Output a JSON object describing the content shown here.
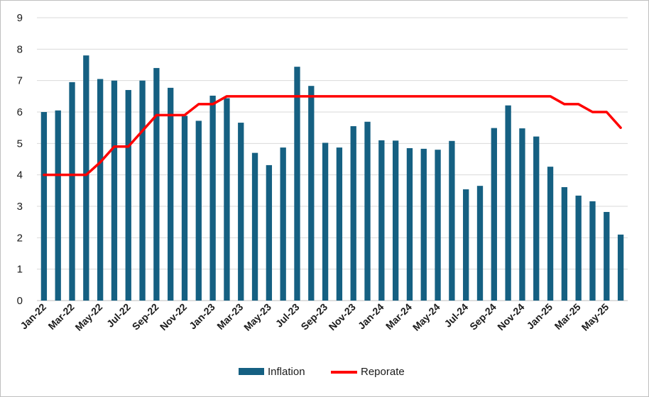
{
  "chart_data": {
    "type": "bar",
    "categories": [
      "Jan-22",
      "Feb-22",
      "Mar-22",
      "Apr-22",
      "May-22",
      "Jun-22",
      "Jul-22",
      "Aug-22",
      "Sep-22",
      "Oct-22",
      "Nov-22",
      "Dec-22",
      "Jan-23",
      "Feb-23",
      "Mar-23",
      "Apr-23",
      "May-23",
      "Jun-23",
      "Jul-23",
      "Aug-23",
      "Sep-23",
      "Oct-23",
      "Nov-23",
      "Dec-23",
      "Jan-24",
      "Feb-24",
      "Mar-24",
      "Apr-24",
      "May-24",
      "Jun-24",
      "Jul-24",
      "Aug-24",
      "Sep-24",
      "Oct-24",
      "Nov-24",
      "Dec-24",
      "Jan-25",
      "Feb-25",
      "Mar-25",
      "Apr-25",
      "May-25",
      "Jun-25"
    ],
    "x_tick_labels": [
      "Jan-22",
      "Mar-22",
      "May-22",
      "Jul-22",
      "Sep-22",
      "Nov-22",
      "Jan-23",
      "Mar-23",
      "May-23",
      "Jul-23",
      "Sep-23",
      "Nov-23",
      "Jan-24",
      "Mar-24",
      "May-24",
      "Jul-24",
      "Sep-24",
      "Nov-24",
      "Jan-25",
      "Mar-25",
      "May-25"
    ],
    "series": [
      {
        "name": "Inflation",
        "kind": "bar",
        "color": "#156082",
        "values": [
          6.0,
          6.05,
          6.95,
          7.8,
          7.05,
          7.0,
          6.7,
          7.0,
          7.4,
          6.77,
          5.88,
          5.72,
          6.52,
          6.44,
          5.66,
          4.7,
          4.31,
          4.87,
          7.44,
          6.83,
          5.02,
          4.87,
          5.55,
          5.69,
          5.1,
          5.09,
          4.85,
          4.83,
          4.8,
          5.08,
          3.54,
          3.65,
          5.49,
          6.21,
          5.48,
          5.22,
          4.26,
          3.61,
          3.34,
          3.16,
          2.82,
          2.1
        ]
      },
      {
        "name": "Reporate",
        "kind": "line",
        "color": "#ff0000",
        "values": [
          4.0,
          4.0,
          4.0,
          4.0,
          4.4,
          4.9,
          4.9,
          5.4,
          5.9,
          5.9,
          5.9,
          6.25,
          6.25,
          6.5,
          6.5,
          6.5,
          6.5,
          6.5,
          6.5,
          6.5,
          6.5,
          6.5,
          6.5,
          6.5,
          6.5,
          6.5,
          6.5,
          6.5,
          6.5,
          6.5,
          6.5,
          6.5,
          6.5,
          6.5,
          6.5,
          6.5,
          6.5,
          6.25,
          6.25,
          6.0,
          6.0,
          5.5
        ]
      }
    ],
    "ylim": [
      0,
      9
    ],
    "yticks": [
      "0",
      "1",
      "2",
      "3",
      "4",
      "5",
      "6",
      "7",
      "8",
      "9"
    ],
    "grid": "horizontal",
    "legend": "bottom",
    "title": "",
    "xlabel": "",
    "ylabel": ""
  }
}
